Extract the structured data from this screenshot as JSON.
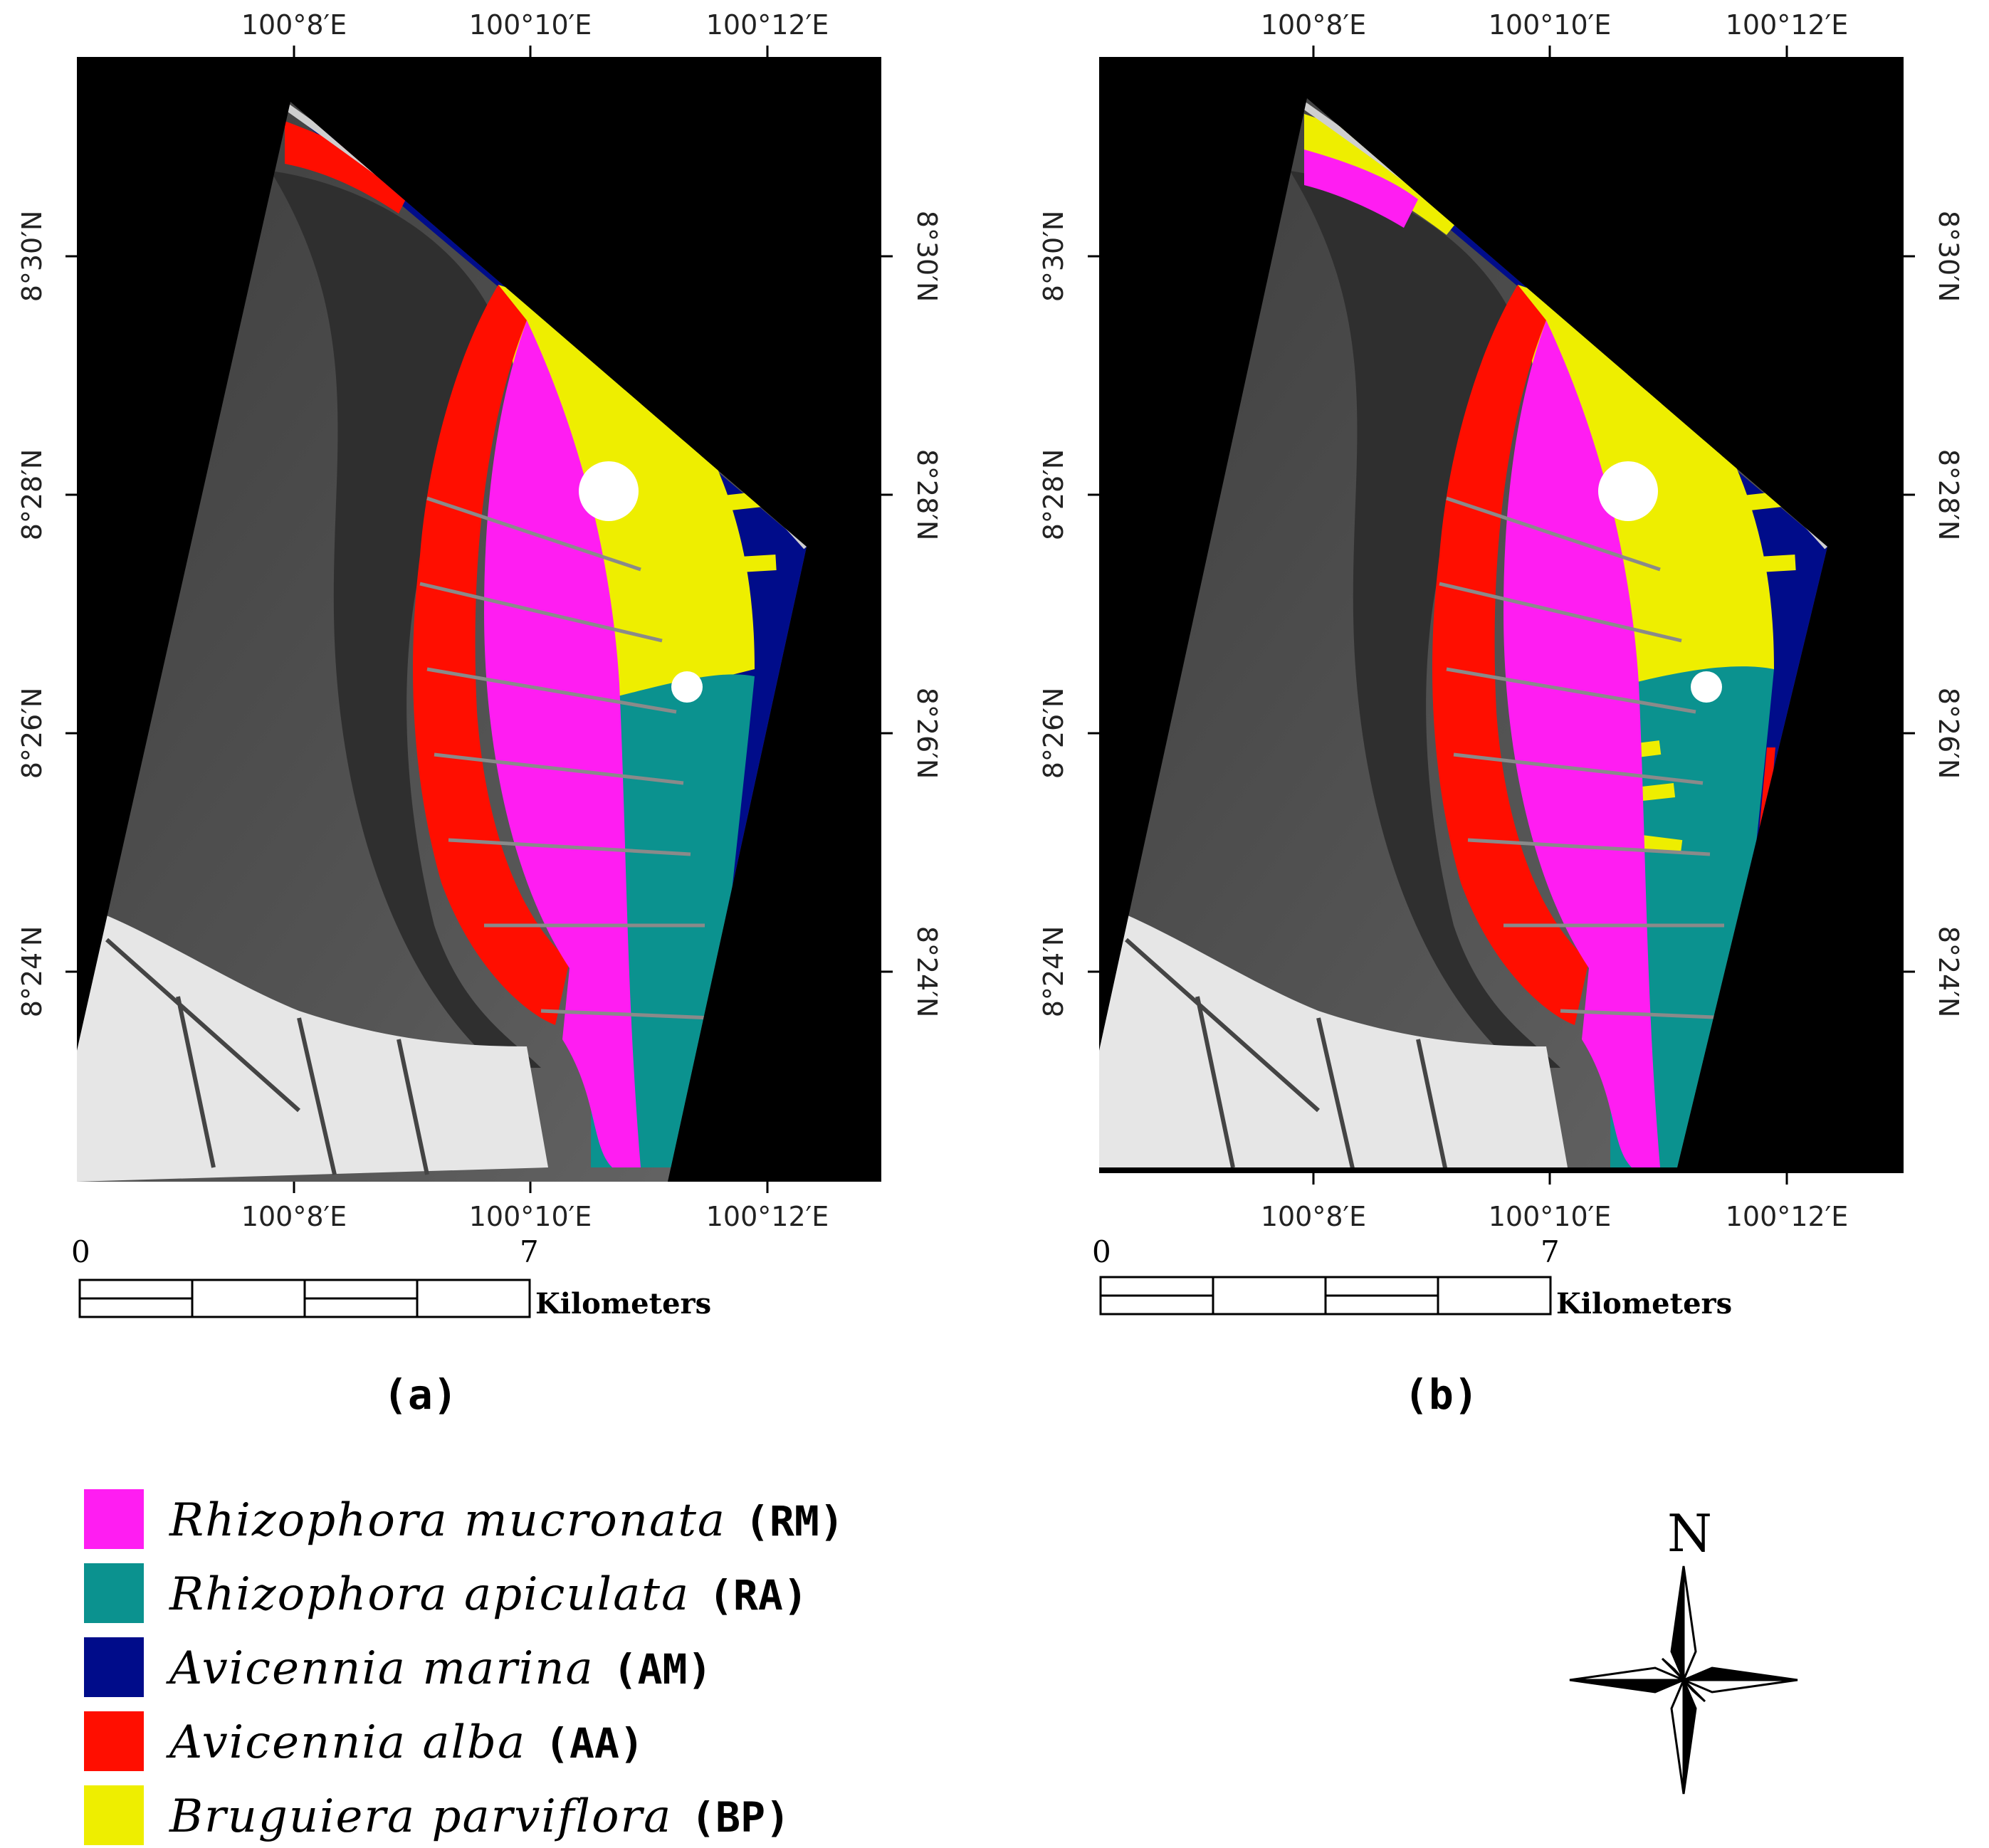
{
  "colors": {
    "RM": "#ff1df2",
    "RA": "#0b928f",
    "AM": "#000c8a",
    "AA": "#ff0e00",
    "BP": "#eeee00"
  },
  "maps": [
    {
      "label": "(a)",
      "lon_labels_top": [
        "100°8′E",
        "100°10′E",
        "100°12′E"
      ],
      "lon_labels_bottom": [
        "100°8′E",
        "100°10′E",
        "100°12′E"
      ],
      "lat_labels_left": [
        "8°30′N",
        "8°28′N",
        "8°26′N",
        "8°24′N"
      ],
      "lat_labels_right": [
        "8°30′N",
        "8°28′N",
        "8°26′N",
        "8°24′N"
      ],
      "scale": {
        "start": "0",
        "end": "7",
        "unit": "Kilometers"
      }
    },
    {
      "label": "(b)",
      "lon_labels_top": [
        "100°8′E",
        "100°10′E",
        "100°12′E"
      ],
      "lon_labels_bottom": [
        "100°8′E",
        "100°10′E",
        "100°12′E"
      ],
      "lat_labels_left": [
        "8°30′N",
        "8°28′N",
        "8°26′N",
        "8°24′N"
      ],
      "lat_labels_right": [
        "8°30′N",
        "8°28′N",
        "8°26′N",
        "8°24′N"
      ],
      "scale": {
        "start": "0",
        "end": "7",
        "unit": "Kilometers"
      }
    }
  ],
  "legend": [
    {
      "species": "Rhizophora mucronata",
      "abbr": "(RM)",
      "color": "#ff1df2"
    },
    {
      "species": "Rhizophora apiculata",
      "abbr": "(RA)",
      "color": "#0b928f"
    },
    {
      "species": "Avicennia marina",
      "abbr": "(AM)",
      "color": "#000c8a"
    },
    {
      "species": "Avicennia alba",
      "abbr": "(AA)",
      "color": "#ff0e00"
    },
    {
      "species": "Bruguiera parviflora",
      "abbr": "(BP)",
      "color": "#eeee00"
    }
  ],
  "compass": {
    "north_label": "N",
    "icon": "north-arrow-compass-icon"
  }
}
